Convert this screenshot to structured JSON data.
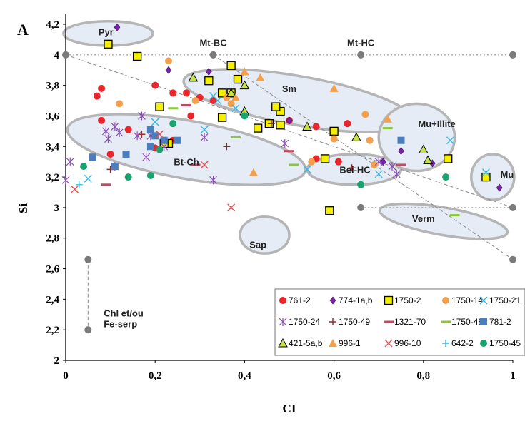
{
  "chart_data": {
    "type": "scatter",
    "panel_label": "A",
    "xlabel": "CI",
    "ylabel": "Si",
    "xlim": [
      0,
      1
    ],
    "ylim": [
      2,
      4.2
    ],
    "x_ticks": [
      "0",
      "0,2",
      "0,4",
      "0,6",
      "0,8",
      "1"
    ],
    "y_ticks": [
      "2",
      "2,2",
      "2,4",
      "2,6",
      "2,8",
      "3",
      "3,2",
      "3,4",
      "3,6",
      "3,8",
      "4",
      "4,2"
    ],
    "grid": false,
    "legend_position": "bottom-right",
    "reference_points": [
      {
        "x": 0,
        "y": 4
      },
      {
        "x": 0.33,
        "y": 4
      },
      {
        "x": 0.66,
        "y": 4
      },
      {
        "x": 1,
        "y": 4
      },
      {
        "x": 0.66,
        "y": 3
      },
      {
        "x": 1,
        "y": 3
      },
      {
        "x": 1,
        "y": 2.66
      },
      {
        "x": 0.05,
        "y": 2.66
      },
      {
        "x": 0.05,
        "y": 2.2
      }
    ],
    "reference_lines": [
      {
        "from": [
          0,
          4
        ],
        "to": [
          1,
          4
        ],
        "style": "dotted"
      },
      {
        "from": [
          0.66,
          3
        ],
        "to": [
          1,
          3
        ],
        "style": "dotted"
      },
      {
        "from": [
          0,
          4
        ],
        "to": [
          1,
          3
        ],
        "style": "dashed"
      },
      {
        "from": [
          0.33,
          4
        ],
        "to": [
          1,
          2.66
        ],
        "style": "dashed"
      },
      {
        "from": [
          0.05,
          2.66
        ],
        "to": [
          0.05,
          2.2
        ],
        "style": "dashed"
      }
    ],
    "regions": [
      {
        "label": "Pyr",
        "cx": 0.095,
        "cy": 4.14,
        "rx": 0.1,
        "ry": 0.08,
        "angle": 0,
        "label_x": 0.09,
        "label_y": 4.15
      },
      {
        "label": "Sm",
        "cx": 0.52,
        "cy": 3.7,
        "rx": 0.26,
        "ry": 0.16,
        "angle": 10,
        "label_x": 0.5,
        "label_y": 3.78
      },
      {
        "label": "Bt-Ch",
        "cx": 0.27,
        "cy": 3.38,
        "rx": 0.27,
        "ry": 0.19,
        "angle": 10,
        "label_x": 0.27,
        "label_y": 3.3
      },
      {
        "label": "Bei-HC",
        "cx": 0.645,
        "cy": 3.25,
        "rx": 0.105,
        "ry": 0.1,
        "angle": 0,
        "label_x": 0.647,
        "label_y": 3.25
      },
      {
        "label": "Mu+Illite",
        "cx": 0.785,
        "cy": 3.46,
        "rx": 0.085,
        "ry": 0.22,
        "angle": 0,
        "label_x": 0.83,
        "label_y": 3.55
      },
      {
        "label": "Mu",
        "cx": 0.955,
        "cy": 3.2,
        "rx": 0.048,
        "ry": 0.15,
        "angle": 0,
        "label_x": 0.987,
        "label_y": 3.22
      },
      {
        "label": "Verm",
        "cx": 0.845,
        "cy": 2.91,
        "rx": 0.145,
        "ry": 0.09,
        "angle": 10,
        "label_x": 0.8,
        "label_y": 2.93
      },
      {
        "label": "Sap",
        "cx": 0.445,
        "cy": 2.82,
        "rx": 0.055,
        "ry": 0.12,
        "angle": 0,
        "label_x": 0.43,
        "label_y": 2.76
      }
    ],
    "annotations": [
      {
        "text": "Mt-BC",
        "x": 0.33,
        "y": 4.08
      },
      {
        "text": "Mt-HC",
        "x": 0.66,
        "y": 4.08
      },
      {
        "text": "Chl et/ou",
        "x": 0.085,
        "y": 2.31
      },
      {
        "text": "Fe-serp",
        "x": 0.085,
        "y": 2.24
      }
    ],
    "series": [
      {
        "name": "761-2",
        "marker": "circle",
        "color": "#e8262b",
        "points": [
          [
            0.08,
            3.78
          ],
          [
            0.07,
            3.73
          ],
          [
            0.08,
            3.57
          ],
          [
            0.14,
            3.51
          ],
          [
            0.06,
            3.33
          ],
          [
            0.1,
            3.35
          ],
          [
            0.2,
            3.39
          ],
          [
            0.2,
            3.8
          ],
          [
            0.24,
            3.75
          ],
          [
            0.27,
            3.75
          ],
          [
            0.33,
            3.7
          ],
          [
            0.28,
            3.6
          ],
          [
            0.5,
            3.57
          ],
          [
            0.56,
            3.53
          ],
          [
            0.61,
            3.3
          ],
          [
            0.63,
            3.55
          ],
          [
            0.56,
            3.32
          ],
          [
            0.3,
            3.72
          ],
          [
            0.24,
            3.44
          ]
        ]
      },
      {
        "name": "774-1a,b",
        "marker": "diamond",
        "color": "#7a22a8",
        "points": [
          [
            0.115,
            4.18
          ],
          [
            0.23,
            3.9
          ],
          [
            0.32,
            3.89
          ],
          [
            0.5,
            3.57
          ],
          [
            0.69,
            3.28
          ],
          [
            0.75,
            3.37
          ],
          [
            0.82,
            3.29
          ],
          [
            0.71,
            3.3
          ],
          [
            0.97,
            3.13
          ]
        ]
      },
      {
        "name": "1750-2",
        "marker": "square",
        "color": "#f4f000",
        "points": [
          [
            0.095,
            4.07
          ],
          [
            0.16,
            3.99
          ],
          [
            0.37,
            3.93
          ],
          [
            0.32,
            3.83
          ],
          [
            0.385,
            3.84
          ],
          [
            0.35,
            3.75
          ],
          [
            0.37,
            3.75
          ],
          [
            0.48,
            3.63
          ],
          [
            0.47,
            3.66
          ],
          [
            0.455,
            3.55
          ],
          [
            0.48,
            3.54
          ],
          [
            0.43,
            3.52
          ],
          [
            0.6,
            3.5
          ],
          [
            0.35,
            3.59
          ],
          [
            0.21,
            3.66
          ],
          [
            0.23,
            3.42
          ],
          [
            0.58,
            3.32
          ],
          [
            0.855,
            3.32
          ],
          [
            0.94,
            3.2
          ],
          [
            0.59,
            2.98
          ],
          [
            0.22,
            3.42
          ]
        ]
      },
      {
        "name": "1750-14",
        "marker": "circle",
        "color": "#f3a04c",
        "points": [
          [
            0.12,
            3.68
          ],
          [
            0.23,
            3.96
          ],
          [
            0.29,
            3.7
          ],
          [
            0.37,
            3.68
          ],
          [
            0.67,
            3.61
          ],
          [
            0.6,
            3.45
          ],
          [
            0.68,
            3.44
          ],
          [
            0.69,
            3.28
          ],
          [
            0.55,
            3.3
          ],
          [
            0.36,
            3.72
          ]
        ]
      },
      {
        "name": "1750-21",
        "marker": "x",
        "color": "#35b8e6",
        "points": [
          [
            0.05,
            3.19
          ],
          [
            0.2,
            3.56
          ],
          [
            0.31,
            3.51
          ],
          [
            0.33,
            3.73
          ],
          [
            0.34,
            3.7
          ],
          [
            0.38,
            3.65
          ],
          [
            0.54,
            3.25
          ],
          [
            0.7,
            3.22
          ],
          [
            0.86,
            3.44
          ],
          [
            0.94,
            3.23
          ]
        ]
      },
      {
        "name": "1750-24",
        "marker": "star",
        "color": "#8a4fb3",
        "points": [
          [
            0,
            3.18
          ],
          [
            0.01,
            3.3
          ],
          [
            0.09,
            3.5
          ],
          [
            0.095,
            3.45
          ],
          [
            0.11,
            3.53
          ],
          [
            0.12,
            3.49
          ],
          [
            0.17,
            3.6
          ],
          [
            0.19,
            3.47
          ],
          [
            0.18,
            3.33
          ],
          [
            0.11,
            3.27
          ],
          [
            0.22,
            3.4
          ],
          [
            0.31,
            3.46
          ],
          [
            0.33,
            3.18
          ],
          [
            0.49,
            3.42
          ],
          [
            0.73,
            3.27
          ],
          [
            0.74,
            3.22
          ],
          [
            0.7,
            3.3
          ],
          [
            0.16,
            3.47
          ]
        ]
      },
      {
        "name": "1750-49",
        "marker": "plus",
        "color": "#8b2a20",
        "points": [
          [
            0.1,
            3.25
          ],
          [
            0.17,
            3.48
          ],
          [
            0.36,
            3.4
          ],
          [
            0.46,
            3.55
          ],
          [
            0.64,
            3.26
          ]
        ]
      },
      {
        "name": "1321-70",
        "marker": "dash",
        "color": "#c5485e",
        "points": [
          [
            0.09,
            3.15
          ],
          [
            0.29,
            3.28
          ],
          [
            0.27,
            3.67
          ],
          [
            0.5,
            3.37
          ],
          [
            0.75,
            3.28
          ]
        ]
      },
      {
        "name": "1750-48",
        "marker": "dash",
        "color": "#8cc63f",
        "points": [
          [
            0.24,
            3.65
          ],
          [
            0.38,
            3.46
          ],
          [
            0.51,
            3.28
          ],
          [
            0.72,
            3.52
          ],
          [
            0.87,
            2.95
          ]
        ]
      },
      {
        "name": "781-2",
        "marker": "square",
        "color": "#4a7ebf",
        "points": [
          [
            0.06,
            3.33
          ],
          [
            0.11,
            3.27
          ],
          [
            0.135,
            3.35
          ],
          [
            0.19,
            3.51
          ],
          [
            0.2,
            3.47
          ],
          [
            0.22,
            3.44
          ],
          [
            0.25,
            3.44
          ],
          [
            0.19,
            3.4
          ],
          [
            0.75,
            3.44
          ]
        ]
      },
      {
        "name": "421-5a,b",
        "marker": "triangle",
        "color": "#c6e24b",
        "points": [
          [
            0.285,
            3.85
          ],
          [
            0.37,
            3.75
          ],
          [
            0.4,
            3.8
          ],
          [
            0.4,
            3.63
          ],
          [
            0.65,
            3.46
          ],
          [
            0.81,
            3.31
          ],
          [
            0.8,
            3.38
          ],
          [
            0.54,
            3.53
          ]
        ]
      },
      {
        "name": "996-1",
        "marker": "triangle",
        "color": "#f3a04c",
        "points": [
          [
            0.4,
            3.89
          ],
          [
            0.435,
            3.85
          ],
          [
            0.42,
            3.23
          ],
          [
            0.6,
            3.78
          ],
          [
            0.72,
            3.58
          ],
          [
            0.38,
            3.72
          ]
        ]
      },
      {
        "name": "996-10",
        "marker": "x",
        "color": "#ea4f4f",
        "points": [
          [
            0.02,
            3.12
          ],
          [
            0.21,
            3.48
          ],
          [
            0.31,
            3.28
          ],
          [
            0.37,
            3
          ]
        ]
      },
      {
        "name": "642-2",
        "marker": "plus",
        "color": "#35b8e6",
        "points": [
          [
            0.03,
            3.15
          ]
        ]
      },
      {
        "name": "1750-45",
        "marker": "circle",
        "color": "#1aa36f",
        "points": [
          [
            0.04,
            3.27
          ],
          [
            0.14,
            3.2
          ],
          [
            0.19,
            3.21
          ],
          [
            0.21,
            3.38
          ],
          [
            0.24,
            3.55
          ],
          [
            0.4,
            3.6
          ],
          [
            0.66,
            3.15
          ],
          [
            0.85,
            3.2
          ]
        ]
      }
    ]
  }
}
